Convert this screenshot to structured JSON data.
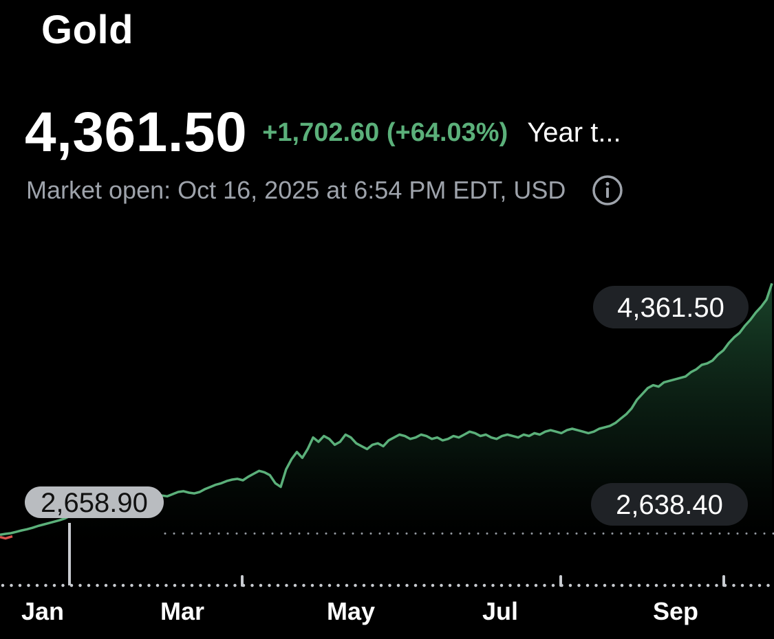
{
  "header": {
    "title": "Gold",
    "price": "4,361.50",
    "change": "+1,702.60 (+64.03%)",
    "range_label": "Year t...",
    "market_status": "Market open: Oct 16, 2025 at 6:54 PM EDT, USD",
    "info_icon": "info-circle-icon"
  },
  "colors": {
    "background": "#000000",
    "line": "#5bb07a",
    "negative": "#e0564f",
    "muted": "#9ea3ab",
    "label_bg": "#1f2226",
    "start_label_bg": "#b9bcc0"
  },
  "chart_data": {
    "type": "area",
    "title": "",
    "xlabel": "",
    "ylabel": "",
    "x_ticks": [
      "Jan",
      "Mar",
      "May",
      "Jul",
      "Sep"
    ],
    "ylim": [
      2480,
      4420
    ],
    "previous_close": 2638.4,
    "previous_close_label": "2,638.40",
    "last_value": 4361.5,
    "last_value_label": "4,361.50",
    "start_value": 2658.9,
    "start_value_label": "2,658.90",
    "series": [
      {
        "values": [
          2630,
          2636,
          2641,
          2650,
          2660,
          2668,
          2678,
          2690,
          2700,
          2710,
          2720,
          2730,
          2742,
          2760,
          2775,
          2790,
          2800,
          2810,
          2820,
          2838,
          2845,
          2850,
          2862,
          2870,
          2880,
          2890,
          2900,
          2905,
          2908,
          2910,
          2900,
          2895,
          2910,
          2925,
          2930,
          2920,
          2915,
          2925,
          2945,
          2960,
          2975,
          2985,
          3000,
          3010,
          3015,
          3005,
          3030,
          3050,
          3070,
          3060,
          3040,
          2985,
          2960,
          3080,
          3150,
          3200,
          3160,
          3220,
          3300,
          3270,
          3310,
          3290,
          3250,
          3270,
          3320,
          3300,
          3260,
          3240,
          3220,
          3250,
          3260,
          3240,
          3280,
          3300,
          3320,
          3310,
          3290,
          3300,
          3320,
          3310,
          3290,
          3300,
          3280,
          3290,
          3310,
          3300,
          3320,
          3340,
          3330,
          3310,
          3320,
          3300,
          3290,
          3310,
          3320,
          3310,
          3300,
          3320,
          3310,
          3330,
          3320,
          3340,
          3350,
          3340,
          3330,
          3350,
          3360,
          3350,
          3340,
          3330,
          3340,
          3360,
          3370,
          3380,
          3400,
          3430,
          3460,
          3500,
          3560,
          3600,
          3640,
          3660,
          3650,
          3680,
          3690,
          3700,
          3710,
          3720,
          3750,
          3770,
          3800,
          3810,
          3830,
          3870,
          3900,
          3950,
          3990,
          4020,
          4070,
          4110,
          4160,
          4200,
          4250,
          4361.5
        ]
      }
    ]
  }
}
